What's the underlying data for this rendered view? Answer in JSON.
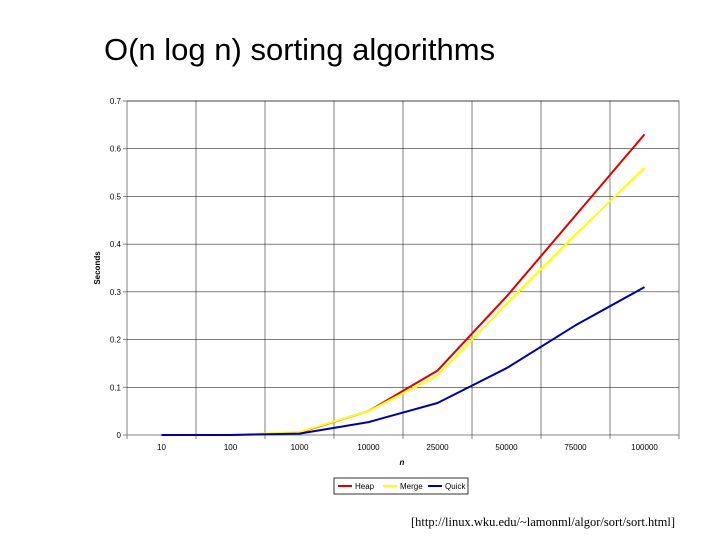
{
  "slide": {
    "title": "O(n log n) sorting algorithms",
    "source": "[http://linux.wku.edu/~lamonml/algor/sort/sort.html]"
  },
  "chart_data": {
    "type": "line",
    "categories": [
      "10",
      "100",
      "1000",
      "10000",
      "25000",
      "50000",
      "75000",
      "100000"
    ],
    "series": [
      {
        "name": "Heap",
        "color": "#dd0000",
        "values": [
          0,
          0,
          0.005,
          0.05,
          0.135,
          0.29,
          0.46,
          0.63
        ]
      },
      {
        "name": "Merge",
        "color": "#ffff00",
        "values": [
          0,
          0,
          0.006,
          0.05,
          0.125,
          0.275,
          0.42,
          0.56
        ]
      },
      {
        "name": "Quick",
        "color": "#0000aa",
        "values": [
          0,
          0,
          0.003,
          0.027,
          0.067,
          0.14,
          0.23,
          0.31
        ]
      }
    ],
    "xlabel": "n",
    "ylabel": "Seconds",
    "ylim": [
      0,
      0.7
    ],
    "yticks": [
      "0",
      "0.1",
      "0.2",
      "0.3",
      "0.4",
      "0.5",
      "0.6",
      "0.7"
    ],
    "grid": true,
    "legend_position": "bottom"
  }
}
